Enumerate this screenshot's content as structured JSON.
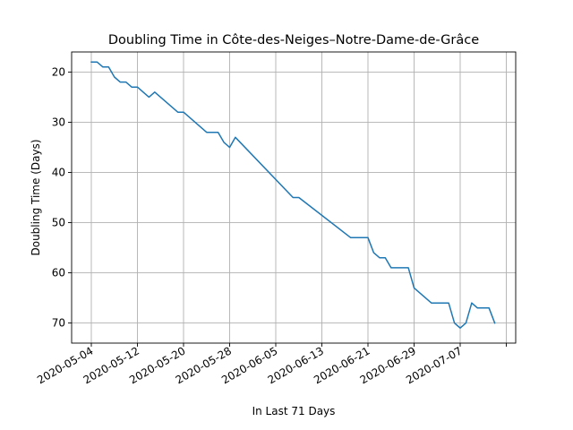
{
  "chart_data": {
    "type": "line",
    "title": "Doubling Time in  Côte-des-Neiges–Notre-Dame-de-Grâce",
    "xlabel": "In Last 71 Days",
    "ylabel": "Doubling Time (Days)",
    "y_inverted": true,
    "ylim": [
      74,
      16
    ],
    "grid": true,
    "x_ticks": [
      "2020-05-04",
      "2020-05-12",
      "2020-05-20",
      "2020-05-28",
      "2020-06-05",
      "2020-06-13",
      "2020-06-21",
      "2020-06-29",
      "2020-07-07",
      ""
    ],
    "y_ticks": [
      20,
      30,
      40,
      50,
      60,
      70
    ],
    "series": [
      {
        "color": "#1f77b4",
        "x": [
          "2020-05-04",
          "2020-05-05",
          "2020-05-06",
          "2020-05-07",
          "2020-05-08",
          "2020-05-09",
          "2020-05-10",
          "2020-05-11",
          "2020-05-12",
          "2020-05-13",
          "2020-05-14",
          "2020-05-15",
          "2020-05-19",
          "2020-05-20",
          "2020-05-24",
          "2020-05-26",
          "2020-05-27",
          "2020-05-28",
          "2020-05-29",
          "2020-06-08",
          "2020-06-09",
          "2020-06-18",
          "2020-06-20",
          "2020-06-21",
          "2020-06-22",
          "2020-06-23",
          "2020-06-24",
          "2020-06-25",
          "2020-06-26",
          "2020-06-27",
          "2020-06-28",
          "2020-06-29",
          "2020-07-02",
          "2020-07-05",
          "2020-07-06",
          "2020-07-07",
          "2020-07-08",
          "2020-07-09",
          "2020-07-10",
          "2020-07-11",
          "2020-07-12",
          "2020-07-13"
        ],
        "y": [
          18,
          18,
          19,
          19,
          21,
          22,
          22,
          23,
          23,
          24,
          25,
          24,
          28,
          28,
          32,
          32,
          34,
          35,
          33,
          45,
          45,
          53,
          53,
          53,
          56,
          57,
          57,
          59,
          59,
          59,
          59,
          63,
          66,
          66,
          70,
          71,
          70,
          66,
          67,
          67,
          67,
          70
        ]
      }
    ]
  }
}
